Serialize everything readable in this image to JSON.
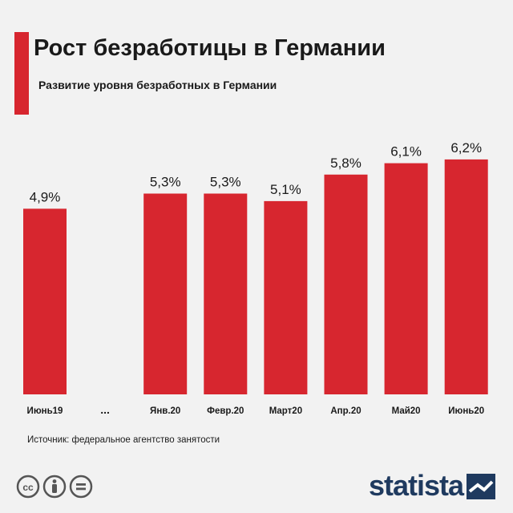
{
  "header": {
    "title": "Рост безработицы в Германии",
    "subtitle": "Развитие уровня безработных в Германии"
  },
  "chart_data": {
    "type": "bar",
    "title": "Рост безработицы в Германии",
    "subtitle": "Развитие уровня безработных в Германии",
    "categories": [
      "Июнь19",
      "...",
      "Янв.20",
      "Февр.20",
      "Март20",
      "Апр.20",
      "Май20",
      "Июнь20"
    ],
    "values": [
      4.9,
      null,
      5.3,
      5.3,
      5.1,
      5.8,
      6.1,
      6.2
    ],
    "data_labels": [
      "4,9%",
      "",
      "5,3%",
      "5,3%",
      "5,1%",
      "5,8%",
      "6,1%",
      "6,2%"
    ],
    "ylim": [
      0,
      6.6
    ],
    "grid": false,
    "bar_color": "#d7262f"
  },
  "footer": {
    "source": "Источник: федеральное агентство занятости",
    "brand": "statista",
    "license_icons": [
      "cc-icon",
      "person-icon",
      "equals-icon"
    ]
  }
}
